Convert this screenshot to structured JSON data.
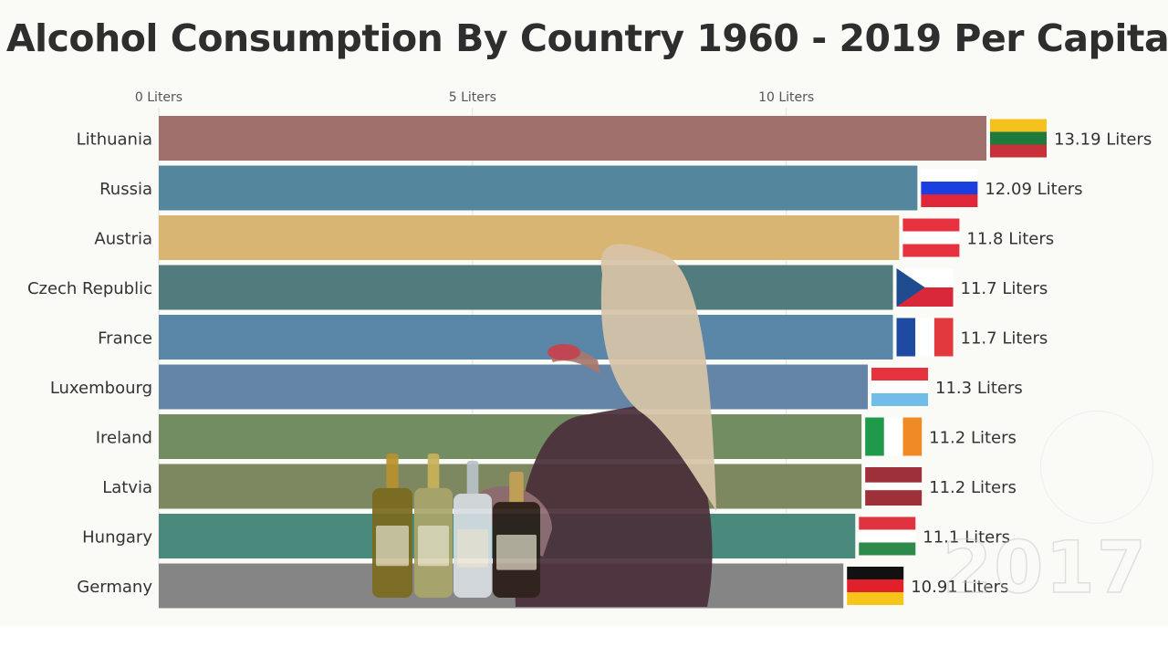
{
  "title": "Alcohol Consumption By Country 1960 - 2019 Per Capita",
  "year": "2017",
  "colors": {
    "background": "#fafaf7",
    "grid": "#e3e3e0"
  },
  "chart_data": {
    "type": "bar",
    "orientation": "horizontal",
    "title": "Alcohol Consumption By Country 1960 - 2019 Per Capita",
    "xlim": [
      0,
      13.19
    ],
    "x_ticks": [
      {
        "value": 0,
        "label": "0 Liters"
      },
      {
        "value": 5,
        "label": "5 Liters"
      },
      {
        "value": 10,
        "label": "10 Liters"
      }
    ],
    "grid": true,
    "bars": [
      {
        "country": "Lithuania",
        "value": 13.19,
        "label": "13.19 Liters",
        "color": "#a0716c",
        "flag": "lithuania"
      },
      {
        "country": "Russia",
        "value": 12.09,
        "label": "12.09 Liters",
        "color": "#54879e",
        "flag": "russia"
      },
      {
        "country": "Austria",
        "value": 11.8,
        "label": "11.8 Liters",
        "color": "#d9b573",
        "flag": "austria"
      },
      {
        "country": "Czech Republic",
        "value": 11.7,
        "label": "11.7 Liters",
        "color": "#517b7d",
        "flag": "czech"
      },
      {
        "country": "France",
        "value": 11.7,
        "label": "11.7 Liters",
        "color": "#5a87a8",
        "flag": "france"
      },
      {
        "country": "Luxembourg",
        "value": 11.3,
        "label": "11.3 Liters",
        "color": "#6485a5",
        "flag": "luxembourg"
      },
      {
        "country": "Ireland",
        "value": 11.2,
        "label": "11.2 Liters",
        "color": "#728d61",
        "flag": "ireland"
      },
      {
        "country": "Latvia",
        "value": 11.2,
        "label": "11.2 Liters",
        "color": "#7e8860",
        "flag": "latvia"
      },
      {
        "country": "Hungary",
        "value": 11.1,
        "label": "11.1 Liters",
        "color": "#498a7d",
        "flag": "hungary"
      },
      {
        "country": "Germany",
        "value": 10.91,
        "label": "10.91 Liters",
        "color": "#858585",
        "flag": "germany"
      }
    ]
  },
  "photo_overlay": {
    "subject": "woman drinking with liquor bottles",
    "bottle_count": 4
  }
}
